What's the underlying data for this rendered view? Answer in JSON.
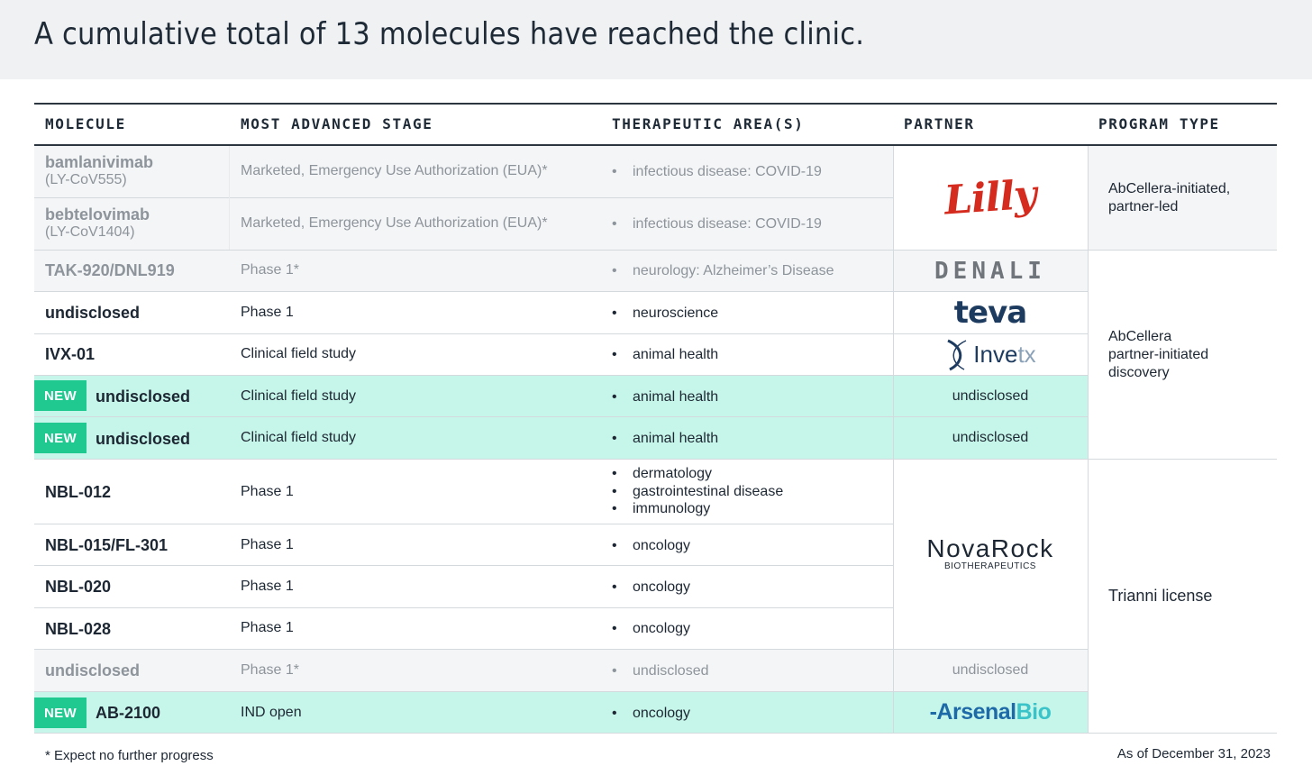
{
  "title": "A cumulative total of 13 molecules have reached the clinic.",
  "headers": {
    "molecule": "MOLECULE",
    "stage": "MOST ADVANCED STAGE",
    "area": "THERAPEUTIC AREA(S)",
    "partner": "PARTNER",
    "program_type": "PROGRAM TYPE"
  },
  "badge_label": "NEW",
  "rows": [
    {
      "molecule": "bamlanivimab",
      "sub": "(LY-CoV555)",
      "stage": "Marketed, Emergency Use Authorization (EUA)*",
      "areas": [
        "infectious disease: COVID-19"
      ],
      "faded": true
    },
    {
      "molecule": "bebtelovimab",
      "sub": "(LY-CoV1404)",
      "stage": "Marketed, Emergency Use Authorization (EUA)*",
      "areas": [
        "infectious disease: COVID-19"
      ],
      "faded": true
    },
    {
      "molecule": "TAK-920/DNL919",
      "stage": "Phase 1*",
      "areas": [
        "neurology: Alzheimer’s Disease"
      ],
      "faded": true
    },
    {
      "molecule": "undisclosed",
      "stage": "Phase 1",
      "areas": [
        "neuroscience"
      ]
    },
    {
      "molecule": "IVX-01",
      "stage": "Clinical field study",
      "areas": [
        "animal health"
      ]
    },
    {
      "molecule": "undisclosed",
      "stage": "Clinical field study",
      "areas": [
        "animal health"
      ],
      "new": true,
      "partner": "undisclosed"
    },
    {
      "molecule": "undisclosed",
      "stage": "Clinical field study",
      "areas": [
        "animal health"
      ],
      "new": true,
      "partner": "undisclosed"
    },
    {
      "molecule": "NBL-012",
      "stage": "Phase 1",
      "areas": [
        "dermatology",
        "gastrointestinal disease",
        "immunology"
      ]
    },
    {
      "molecule": "NBL-015/FL-301",
      "stage": "Phase 1",
      "areas": [
        "oncology"
      ]
    },
    {
      "molecule": "NBL-020",
      "stage": "Phase 1",
      "areas": [
        "oncology"
      ]
    },
    {
      "molecule": "NBL-028",
      "stage": "Phase 1",
      "areas": [
        "oncology"
      ]
    },
    {
      "molecule": "undisclosed",
      "stage": "Phase 1*",
      "areas": [
        "undisclosed"
      ],
      "faded": true,
      "partner": "undisclosed"
    },
    {
      "molecule": "AB-2100",
      "stage": "IND open",
      "areas": [
        "oncology"
      ],
      "new": true
    }
  ],
  "partner_logos": {
    "lilly": "Lilly",
    "denali": "DENALI",
    "teva": "teva",
    "invetx_a": "Inve",
    "invetx_b": "tx",
    "novarock_a": "NovaRock",
    "novarock_b": "BIOTHERAPEUTICS",
    "arsenal_a": "Arsenal",
    "arsenal_b": "Bio"
  },
  "program_types": {
    "group1": [
      "AbCellera-initiated,",
      "partner-led"
    ],
    "group2": [
      "AbCellera",
      "partner-initiated",
      "discovery"
    ],
    "group3": [
      "Trianni license"
    ]
  },
  "footnote": "* Expect no further progress",
  "as_of": "As of December 31, 2023",
  "colors": {
    "new_badge": "#1fc98f",
    "new_row": "#c6f6e9",
    "grey_row": "#f4f5f6",
    "lilly_red": "#d52b1e"
  }
}
